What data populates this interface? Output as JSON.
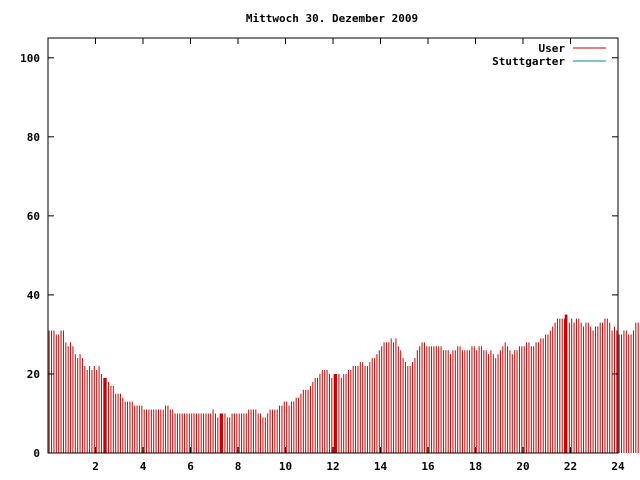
{
  "chart_data": {
    "type": "bar",
    "title": "Mittwoch 30. Dezember 2009",
    "xlabel": "",
    "ylabel": "",
    "xlim": [
      0,
      24
    ],
    "ylim": [
      0,
      105
    ],
    "x_ticks": [
      2,
      4,
      6,
      8,
      10,
      12,
      14,
      16,
      18,
      20,
      22,
      24
    ],
    "y_ticks": [
      0,
      20,
      40,
      60,
      80,
      100
    ],
    "grid": false,
    "legend_position": "top-right",
    "series": [
      {
        "name": "User",
        "color": "#cc0000",
        "interval_hours": 0.1,
        "values": [
          31,
          31,
          31,
          30,
          30,
          31,
          31,
          28,
          27,
          28,
          27,
          25,
          24,
          25,
          24,
          22,
          21,
          22,
          21,
          22,
          21,
          22,
          20,
          19,
          19,
          18,
          17,
          17,
          15,
          15,
          15,
          14,
          13,
          13,
          13,
          13,
          12,
          12,
          12,
          12,
          11,
          11,
          11,
          11,
          11,
          11,
          11,
          11,
          11,
          12,
          12,
          11,
          11,
          10,
          10,
          10,
          10,
          10,
          10,
          10,
          10,
          10,
          10,
          10,
          10,
          10,
          10,
          10,
          10,
          11,
          10,
          9,
          10,
          10,
          10,
          9,
          9,
          10,
          10,
          10,
          10,
          10,
          10,
          10,
          11,
          11,
          11,
          11,
          10,
          10,
          9,
          9,
          10,
          11,
          11,
          11,
          11,
          12,
          12,
          13,
          13,
          12,
          13,
          13,
          14,
          14,
          15,
          16,
          16,
          16,
          17,
          18,
          19,
          19,
          20,
          21,
          21,
          21,
          20,
          19,
          20,
          20,
          20,
          19,
          20,
          20,
          21,
          21,
          22,
          22,
          22,
          23,
          23,
          22,
          22,
          23,
          24,
          24,
          25,
          26,
          27,
          28,
          28,
          28,
          29,
          28,
          29,
          27,
          26,
          24,
          23,
          22,
          22,
          23,
          24,
          26,
          27,
          28,
          28,
          27,
          27,
          27,
          27,
          27,
          27,
          27,
          26,
          26,
          26,
          25,
          26,
          26,
          27,
          27,
          26,
          26,
          26,
          26,
          27,
          27,
          26,
          27,
          27,
          26,
          26,
          25,
          26,
          25,
          24,
          25,
          26,
          27,
          28,
          27,
          26,
          25,
          26,
          26,
          27,
          27,
          27,
          28,
          28,
          27,
          27,
          28,
          28,
          29,
          29,
          30,
          30,
          31,
          32,
          33,
          34,
          34,
          34,
          34,
          35,
          33,
          34,
          33,
          34,
          34,
          33,
          32,
          33,
          33,
          32,
          31,
          32,
          32,
          33,
          33,
          34,
          34,
          33,
          31,
          32,
          31,
          30,
          30,
          31,
          31,
          30,
          30,
          31,
          33,
          33,
          33
        ],
        "emphasized_bar_hours": [
          2.4,
          7.3,
          12.1,
          21.8
        ]
      },
      {
        "name": "Stuttgarter",
        "color": "#008b8b",
        "values": []
      }
    ]
  }
}
